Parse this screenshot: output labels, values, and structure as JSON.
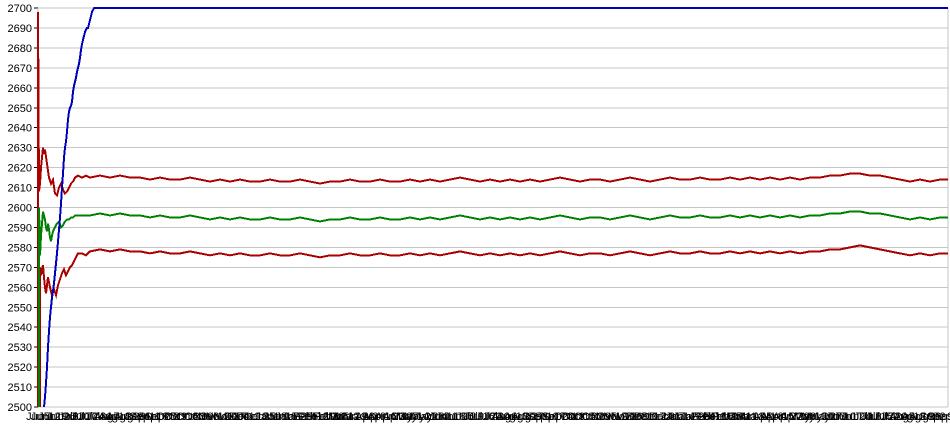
{
  "colors": {
    "blue": "#0000BB",
    "dark_red": "#AA0000",
    "green": "#008000",
    "grid": "#C6C6C6",
    "tick": "#000000",
    "text": "#000000",
    "background": "#FFFFFF"
  },
  "chart_data": {
    "type": "line",
    "title": "",
    "xlabel": "",
    "ylabel": "",
    "ylim": [
      2500,
      2700
    ],
    "y_tick_step": 10,
    "grid": true,
    "legend": "none",
    "y_tick_labels": [
      "2500",
      "2510",
      "2520",
      "2530",
      "2540",
      "2550",
      "2560",
      "2570",
      "2580",
      "2590",
      "2600",
      "2610",
      "2620",
      "2630",
      "2640",
      "2650",
      "2660",
      "2670",
      "2680",
      "2690",
      "2700"
    ],
    "x_labels": [
      "Jun5",
      "Jun12",
      "Jun19",
      "Jun26",
      "Jul3",
      "Jul10",
      "Jul17",
      "Jul24",
      "Jul31",
      "Aug7",
      "Aug14",
      "Aug21",
      "Aug28",
      "Sep4",
      "Sep11",
      "Sep18",
      "Sep25",
      "Oct2",
      "Oct9",
      "Oct16",
      "Oct23",
      "Oct30",
      "Nov6",
      "Nov13",
      "Nov20",
      "Nov27",
      "Dec4",
      "Dec11",
      "Dec18",
      "Dec25",
      "Jan1",
      "Jan8",
      "Jan15",
      "Jan22",
      "Jan29",
      "Feb5",
      "Feb12",
      "Feb19",
      "Feb26",
      "Mar5",
      "Mar12",
      "Mar19",
      "Mar26",
      "Apr2",
      "Apr9",
      "Apr16",
      "Apr23",
      "Apr30",
      "May7",
      "May14",
      "May21",
      "May28",
      "Jun4",
      "Jun11",
      "Jun18",
      "Jun25",
      "Jul2",
      "Jul9",
      "Jul16",
      "Jul23",
      "Jul30",
      "Aug6",
      "Aug13",
      "Aug20",
      "Aug27",
      "Sep3",
      "Sep10",
      "Sep17",
      "Sep24",
      "Oct1",
      "Oct8",
      "Oct15",
      "Oct22",
      "Oct29",
      "Nov5",
      "Nov12",
      "Nov19",
      "Nov26",
      "Dec3",
      "Dec10",
      "Dec17",
      "Dec24",
      "Dec31",
      "Jan7",
      "Jan14",
      "Jan21",
      "Jan28",
      "Feb4",
      "Feb11",
      "Feb18",
      "Feb25",
      "Mar4",
      "Mar11",
      "Mar18",
      "Mar25",
      "Apr1",
      "Apr8",
      "Apr15",
      "Apr22",
      "Apr29",
      "May6",
      "May13",
      "May20",
      "May27",
      "Jun3",
      "Jun10",
      "Jun17",
      "Jun24",
      "Jul1",
      "Jul8",
      "Jul15",
      "Jul22",
      "Jul29",
      "Aug5",
      "Aug12",
      "Aug19",
      "Aug26",
      "Sep2",
      "Sep9",
      "Sep16"
    ],
    "series": [
      {
        "name": "upper-band-red",
        "color_key": "dark_red",
        "head": [
          [
            0,
            2500
          ],
          [
            0,
            2698
          ],
          [
            1,
            2608
          ],
          [
            2,
            2612
          ],
          [
            3,
            2620
          ],
          [
            5,
            2630
          ],
          [
            6,
            2627
          ],
          [
            7,
            2629
          ],
          [
            9,
            2622
          ],
          [
            11,
            2615
          ],
          [
            13,
            2612
          ],
          [
            15,
            2614
          ],
          [
            17,
            2607
          ],
          [
            19,
            2606
          ],
          [
            21,
            2610
          ],
          [
            23,
            2612
          ],
          [
            25,
            2609
          ],
          [
            27,
            2607
          ],
          [
            29,
            2608
          ],
          [
            31,
            2610
          ],
          [
            33,
            2612
          ],
          [
            35,
            2613
          ],
          [
            37,
            2615
          ],
          [
            40,
            2616
          ],
          [
            44,
            2615
          ],
          [
            48,
            2616
          ]
        ],
        "tail": {
          "x_start": 52,
          "x_step": 10,
          "values": [
            2615,
            2616,
            2615,
            2616,
            2615,
            2615,
            2614,
            2615,
            2614,
            2614,
            2615,
            2614,
            2613,
            2614,
            2613,
            2614,
            2613,
            2613,
            2614,
            2613,
            2613,
            2614,
            2613,
            2612,
            2613,
            2613,
            2614,
            2613,
            2613,
            2614,
            2613,
            2613,
            2614,
            2613,
            2614,
            2613,
            2614,
            2615,
            2614,
            2613,
            2614,
            2613,
            2614,
            2613,
            2614,
            2613,
            2614,
            2615,
            2614,
            2613,
            2614,
            2614,
            2613,
            2614,
            2615,
            2614,
            2613,
            2614,
            2615,
            2614,
            2614,
            2615,
            2614,
            2614,
            2615,
            2614,
            2615,
            2614,
            2615,
            2614,
            2615,
            2614,
            2615,
            2615,
            2616,
            2616,
            2617,
            2617,
            2616,
            2616,
            2615,
            2614,
            2613,
            2614,
            2613,
            2614,
            2614
          ]
        }
      },
      {
        "name": "lower-band-red",
        "color_key": "dark_red",
        "head": [
          [
            2,
            2500
          ],
          [
            2,
            2570
          ],
          [
            3,
            2566
          ],
          [
            4,
            2569
          ],
          [
            5,
            2571
          ],
          [
            6,
            2565
          ],
          [
            7,
            2560
          ],
          [
            8,
            2557
          ],
          [
            9,
            2561
          ],
          [
            10,
            2565
          ],
          [
            12,
            2560
          ],
          [
            14,
            2556
          ],
          [
            16,
            2559
          ],
          [
            18,
            2556
          ],
          [
            20,
            2561
          ],
          [
            22,
            2564
          ],
          [
            24,
            2567
          ],
          [
            26,
            2569
          ],
          [
            28,
            2566
          ],
          [
            30,
            2568
          ],
          [
            32,
            2570
          ],
          [
            34,
            2571
          ],
          [
            36,
            2573
          ],
          [
            38,
            2575
          ],
          [
            40,
            2577
          ],
          [
            44,
            2577
          ],
          [
            48,
            2576
          ]
        ],
        "tail": {
          "x_start": 52,
          "x_step": 10,
          "values": [
            2578,
            2579,
            2578,
            2579,
            2578,
            2578,
            2577,
            2578,
            2577,
            2577,
            2578,
            2577,
            2576,
            2577,
            2576,
            2577,
            2576,
            2576,
            2577,
            2576,
            2576,
            2577,
            2576,
            2575,
            2576,
            2576,
            2577,
            2576,
            2576,
            2577,
            2576,
            2576,
            2577,
            2576,
            2577,
            2576,
            2577,
            2578,
            2577,
            2576,
            2577,
            2576,
            2577,
            2576,
            2577,
            2576,
            2577,
            2578,
            2577,
            2576,
            2577,
            2577,
            2576,
            2577,
            2578,
            2577,
            2576,
            2577,
            2578,
            2577,
            2577,
            2578,
            2577,
            2577,
            2578,
            2577,
            2578,
            2577,
            2578,
            2577,
            2578,
            2577,
            2578,
            2578,
            2579,
            2579,
            2580,
            2581,
            2580,
            2579,
            2578,
            2577,
            2576,
            2577,
            2576,
            2577,
            2577
          ]
        }
      },
      {
        "name": "mean-green",
        "color_key": "green",
        "head": [
          [
            1,
            2500
          ],
          [
            1,
            2600
          ],
          [
            2,
            2576
          ],
          [
            3,
            2586
          ],
          [
            4,
            2592
          ],
          [
            5,
            2598
          ],
          [
            6,
            2596
          ],
          [
            7,
            2594
          ],
          [
            8,
            2590
          ],
          [
            9,
            2588
          ],
          [
            10,
            2592
          ],
          [
            11,
            2589
          ],
          [
            12,
            2585
          ],
          [
            13,
            2583
          ],
          [
            14,
            2586
          ],
          [
            15,
            2588
          ],
          [
            17,
            2590
          ],
          [
            19,
            2592
          ],
          [
            21,
            2593
          ],
          [
            23,
            2590
          ],
          [
            25,
            2591
          ],
          [
            27,
            2593
          ],
          [
            29,
            2594
          ],
          [
            31,
            2594
          ],
          [
            33,
            2595
          ],
          [
            35,
            2595
          ],
          [
            37,
            2596
          ],
          [
            40,
            2596
          ],
          [
            44,
            2596
          ],
          [
            48,
            2596
          ]
        ],
        "tail": {
          "x_start": 52,
          "x_step": 10,
          "values": [
            2596,
            2597,
            2596,
            2597,
            2596,
            2596,
            2595,
            2596,
            2595,
            2595,
            2596,
            2595,
            2594,
            2595,
            2594,
            2595,
            2594,
            2594,
            2595,
            2594,
            2594,
            2595,
            2594,
            2593,
            2594,
            2594,
            2595,
            2594,
            2594,
            2595,
            2594,
            2594,
            2595,
            2594,
            2595,
            2594,
            2595,
            2596,
            2595,
            2594,
            2595,
            2594,
            2595,
            2594,
            2595,
            2594,
            2595,
            2596,
            2595,
            2594,
            2595,
            2595,
            2594,
            2595,
            2596,
            2595,
            2594,
            2595,
            2596,
            2595,
            2595,
            2596,
            2595,
            2595,
            2596,
            2595,
            2596,
            2595,
            2596,
            2595,
            2596,
            2595,
            2596,
            2596,
            2597,
            2597,
            2598,
            2598,
            2597,
            2597,
            2596,
            2595,
            2594,
            2595,
            2594,
            2595,
            2595
          ]
        }
      },
      {
        "name": "equity-curve-blue",
        "color_key": "blue",
        "head": [
          [
            6,
            2500
          ],
          [
            7,
            2505
          ],
          [
            8,
            2512
          ],
          [
            9,
            2520
          ],
          [
            10,
            2530
          ],
          [
            11,
            2538
          ],
          [
            12,
            2545
          ],
          [
            13,
            2550
          ],
          [
            14,
            2555
          ],
          [
            15,
            2558
          ],
          [
            16,
            2562
          ],
          [
            17,
            2567
          ],
          [
            18,
            2572
          ],
          [
            19,
            2577
          ],
          [
            20,
            2583
          ],
          [
            21,
            2589
          ],
          [
            22,
            2595
          ],
          [
            23,
            2602
          ],
          [
            24,
            2610
          ],
          [
            25,
            2617
          ],
          [
            26,
            2625
          ],
          [
            27,
            2630
          ],
          [
            28,
            2633
          ],
          [
            29,
            2638
          ],
          [
            30,
            2644
          ],
          [
            31,
            2648
          ],
          [
            32,
            2650
          ],
          [
            33,
            2651
          ],
          [
            34,
            2653
          ],
          [
            35,
            2658
          ],
          [
            36,
            2661
          ],
          [
            37,
            2663
          ],
          [
            38,
            2665
          ],
          [
            39,
            2668
          ],
          [
            40,
            2670
          ],
          [
            41,
            2672
          ],
          [
            42,
            2675
          ],
          [
            43,
            2679
          ],
          [
            44,
            2682
          ],
          [
            45,
            2684
          ],
          [
            46,
            2686
          ],
          [
            47,
            2688
          ],
          [
            48,
            2689
          ],
          [
            49,
            2690
          ],
          [
            50,
            2690
          ],
          [
            51,
            2692
          ],
          [
            52,
            2694
          ],
          [
            53,
            2696
          ],
          [
            54,
            2698
          ],
          [
            55,
            2699
          ],
          [
            56,
            2700
          ],
          [
            910,
            2700
          ]
        ],
        "tail": {
          "x_start": 0,
          "x_step": 0,
          "values": []
        }
      }
    ]
  }
}
